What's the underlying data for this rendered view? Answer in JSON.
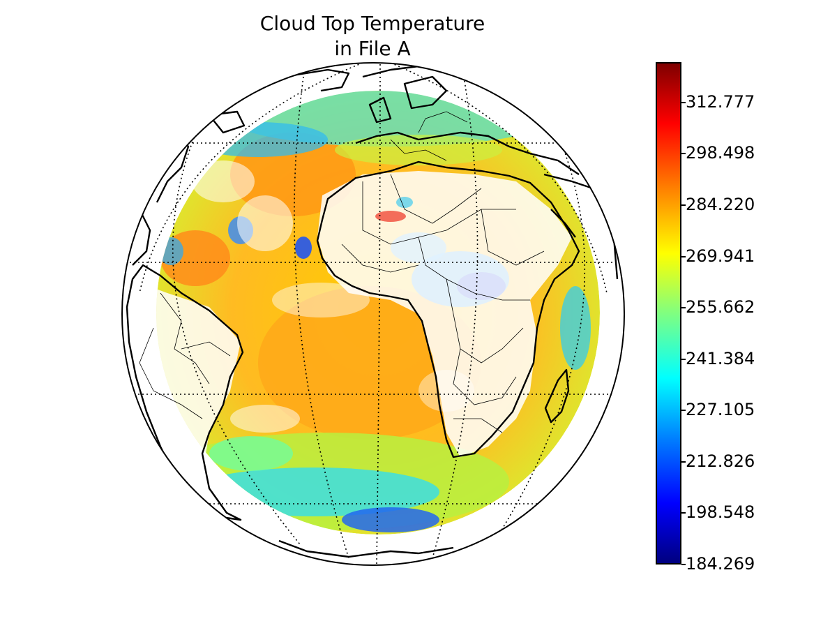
{
  "figure": {
    "title_line1": "Cloud Top Temperature",
    "title_line2": "in File A"
  },
  "map": {
    "projection": "orthographic",
    "graticule": "dotted",
    "colormap": "jet",
    "coastlines": true,
    "country_borders": true
  },
  "colorbar": {
    "min": 184.269,
    "max": 324.0,
    "ticks": [
      "312.777",
      "298.498",
      "284.220",
      "269.941",
      "255.662",
      "241.384",
      "227.105",
      "212.826",
      "198.548",
      "184.269"
    ],
    "tick_values": [
      312.777,
      298.498,
      284.22,
      269.941,
      255.662,
      241.384,
      227.105,
      212.826,
      198.548,
      184.269
    ],
    "colors": {
      "low": "#00007f",
      "high": "#7f0000"
    }
  }
}
